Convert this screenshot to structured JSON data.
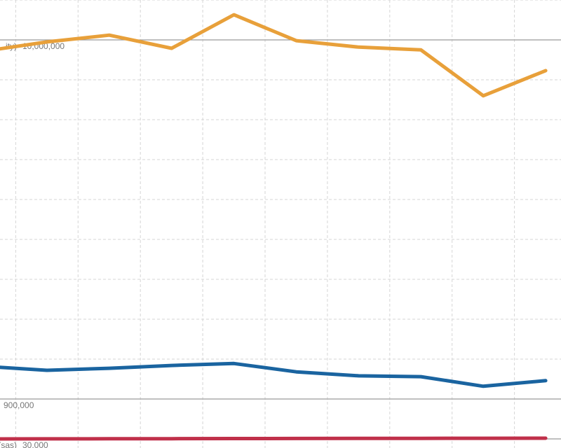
{
  "chart_data": {
    "type": "line",
    "categories": [
      null,
      null,
      null,
      null,
      null,
      null,
      null,
      null,
      null,
      null
    ],
    "grid": true,
    "ylim": [
      0,
      11000000
    ],
    "yticks": [
      0,
      1000000,
      2000000,
      3000000,
      4000000,
      5000000,
      6000000,
      7000000,
      8000000,
      9000000,
      10000000,
      11000000
    ],
    "series": [
      {
        "color": "#e8a03a",
        "ylim": [
          0,
          11000000
        ],
        "prefix": "ity)",
        "reference": {
          "value": 10000000,
          "label": "10,000,000"
        },
        "values": [
          9720000,
          9950000,
          10120000,
          9790000,
          10630000,
          9980000,
          9820000,
          9750000,
          8600000,
          9230000
        ]
      },
      {
        "color": "#1a64a0",
        "ylim": [
          800000,
          1900000
        ],
        "reference": {
          "value": 900000,
          "label": "900,000"
        },
        "values": [
          982000,
          972000,
          977000,
          984000,
          989000,
          968000,
          958000,
          956000,
          932000,
          946000
        ]
      },
      {
        "color": "#c0304a",
        "ylim": [
          30000,
          140000
        ],
        "prefix": "(sas)",
        "reference": {
          "value": 30000,
          "label": "30,000"
        },
        "values": [
          30000,
          30020,
          30040,
          30060,
          30080,
          30100,
          30120,
          30140,
          30160,
          30180
        ]
      }
    ]
  }
}
